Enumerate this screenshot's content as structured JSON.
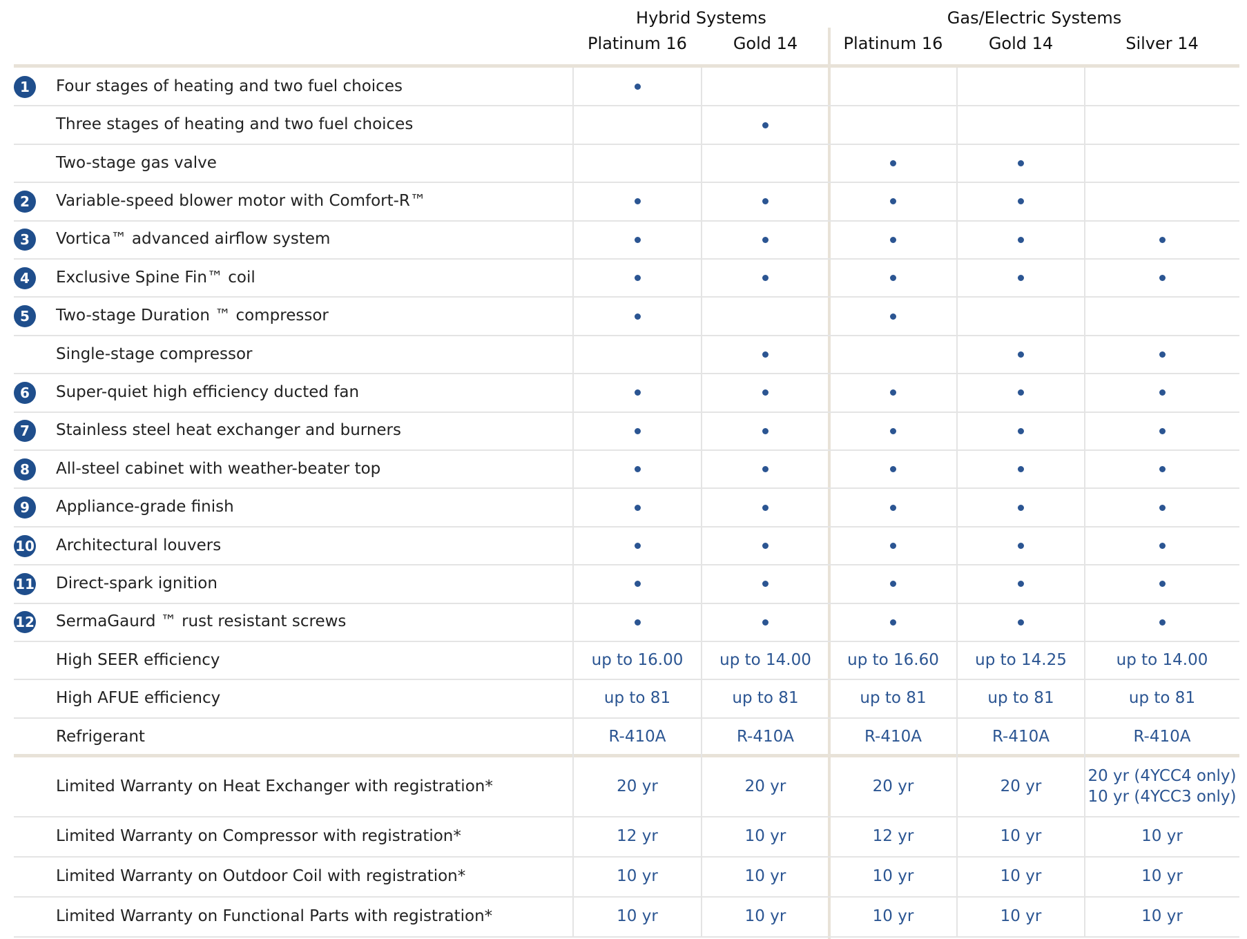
{
  "groups": [
    {
      "name": "Hybrid Systems",
      "columns": [
        "Platinum 16",
        "Gold 14"
      ]
    },
    {
      "name": "Gas/Electric Systems",
      "columns": [
        "Platinum 16",
        "Gold 14",
        "Silver 14"
      ]
    }
  ],
  "features": [
    {
      "badge": "1",
      "label": "Four stages of heating and two fuel choices",
      "cells": [
        "•",
        null,
        null,
        null,
        null
      ]
    },
    {
      "label": "Three stages of heating and two fuel choices",
      "cells": [
        null,
        "•",
        null,
        null,
        null
      ]
    },
    {
      "label": "Two-stage gas valve",
      "cells": [
        null,
        null,
        "•",
        "•",
        null
      ]
    },
    {
      "badge": "2",
      "label": "Variable-speed blower motor with Comfort-R™",
      "cells": [
        "•",
        "•",
        "•",
        "•",
        null
      ]
    },
    {
      "badge": "3",
      "label": "Vortica™ advanced airflow system",
      "cells": [
        "•",
        "•",
        "•",
        "•",
        "•"
      ]
    },
    {
      "badge": "4",
      "label": "Exclusive Spine Fin™ coil",
      "cells": [
        "•",
        "•",
        "•",
        "•",
        "•"
      ]
    },
    {
      "badge": "5",
      "label": "Two-stage Duration ™ compressor",
      "cells": [
        "•",
        null,
        "•",
        null,
        null
      ]
    },
    {
      "label": "Single-stage compressor",
      "cells": [
        null,
        "•",
        null,
        "•",
        "•"
      ]
    },
    {
      "badge": "6",
      "label": "Super-quiet high efficiency ducted fan",
      "cells": [
        "•",
        "•",
        "•",
        "•",
        "•"
      ]
    },
    {
      "badge": "7",
      "label": "Stainless steel heat exchanger and burners",
      "cells": [
        "•",
        "•",
        "•",
        "•",
        "•"
      ]
    },
    {
      "badge": "8",
      "label": "All-steel cabinet with weather-beater top",
      "cells": [
        "•",
        "•",
        "•",
        "•",
        "•"
      ]
    },
    {
      "badge": "9",
      "label": "Appliance-grade finish",
      "cells": [
        "•",
        "•",
        "•",
        "•",
        "•"
      ]
    },
    {
      "badge": "10",
      "label": "Architectural louvers",
      "cells": [
        "•",
        "•",
        "•",
        "•",
        "•"
      ]
    },
    {
      "badge": "11",
      "label": "Direct-spark ignition",
      "cells": [
        "•",
        "•",
        "•",
        "•",
        "•"
      ]
    },
    {
      "badge": "12",
      "label": "SermaGaurd ™ rust resistant screws",
      "cells": [
        "•",
        "•",
        "•",
        "•",
        "•"
      ]
    },
    {
      "label": "High SEER efficiency",
      "cells": [
        "up to 16.00",
        "up to 14.00",
        "up to 16.60",
        "up to 14.25",
        "up to 14.00"
      ]
    },
    {
      "label": "High AFUE efficiency",
      "cells": [
        "up to 81",
        "up to 81",
        "up to 81",
        "up to 81",
        "up to 81"
      ]
    },
    {
      "label": "Refrigerant",
      "cells": [
        "R-410A",
        "R-410A",
        "R-410A",
        "R-410A",
        "R-410A"
      ]
    }
  ],
  "warranty": [
    {
      "label": "Limited Warranty on Heat Exchanger with registration*",
      "cells": [
        "20 yr",
        "20 yr",
        "20 yr",
        "20 yr",
        [
          "20 yr (4YCC4 only)",
          "10 yr (4YCC3 only)"
        ]
      ]
    },
    {
      "label": "Limited Warranty on Compressor with registration*",
      "cells": [
        "12 yr",
        "10 yr",
        "12 yr",
        "10 yr",
        "10 yr"
      ]
    },
    {
      "label": "Limited Warranty on Outdoor Coil with registration*",
      "cells": [
        "10 yr",
        "10 yr",
        "10 yr",
        "10 yr",
        "10 yr"
      ]
    },
    {
      "label": "Limited Warranty on Functional Parts with registration*",
      "cells": [
        "10 yr",
        "10 yr",
        "10 yr",
        "10 yr",
        "10 yr"
      ]
    }
  ]
}
